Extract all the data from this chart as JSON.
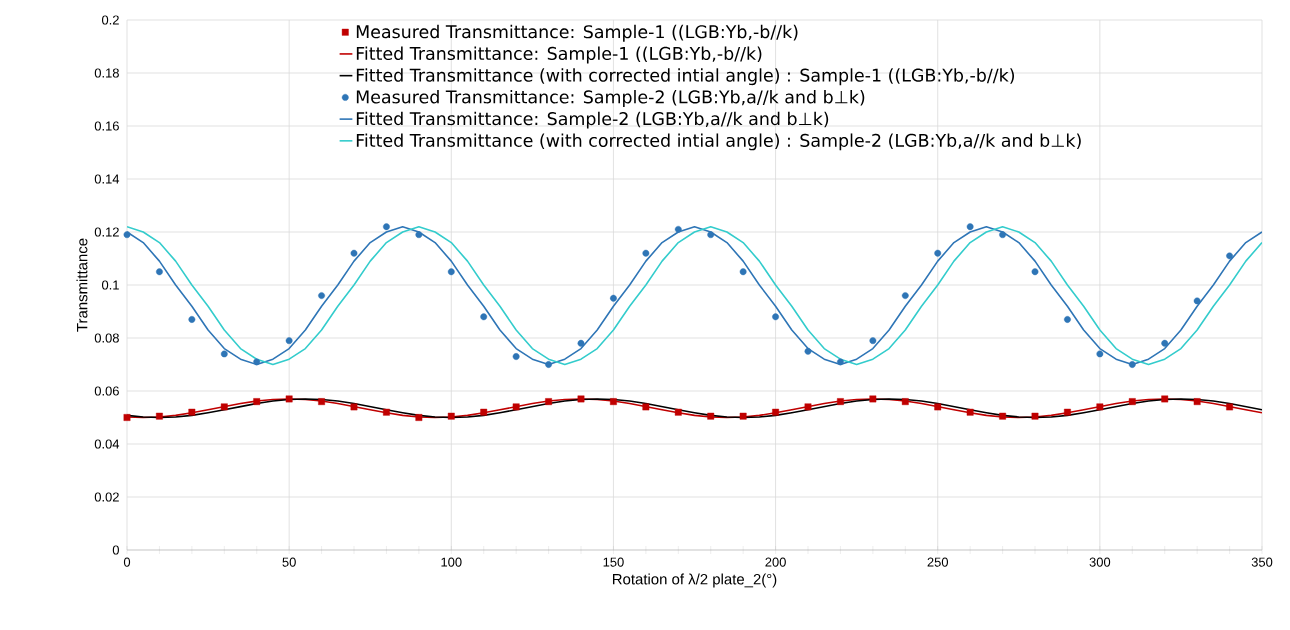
{
  "chart_data": {
    "type": "line",
    "xlabel": "Rotation of λ/2 plate_2(°)",
    "ylabel": "Transmittance",
    "xlim": [
      0,
      350
    ],
    "ylim": [
      0,
      0.2
    ],
    "xticks": [
      0,
      {
        "value": 10,
        "label": null
      },
      {
        "value": 20,
        "label": null
      },
      {
        "value": 30,
        "label": null
      },
      {
        "value": 40,
        "label": null
      },
      50,
      {
        "value": 60,
        "label": null
      },
      {
        "value": 70,
        "label": null
      },
      {
        "value": 80,
        "label": null
      },
      {
        "value": 90,
        "label": null
      },
      100,
      {
        "value": 110,
        "label": null
      },
      {
        "value": 120,
        "label": null
      },
      {
        "value": 130,
        "label": null
      },
      {
        "value": 140,
        "label": null
      },
      150,
      {
        "value": 160,
        "label": null
      },
      {
        "value": 170,
        "label": null
      },
      {
        "value": 180,
        "label": null
      },
      {
        "value": 190,
        "label": null
      },
      200,
      {
        "value": 210,
        "label": null
      },
      {
        "value": 220,
        "label": null
      },
      {
        "value": 230,
        "label": null
      },
      {
        "value": 240,
        "label": null
      },
      250,
      {
        "value": 260,
        "label": null
      },
      {
        "value": 270,
        "label": null
      },
      {
        "value": 280,
        "label": null
      },
      {
        "value": 290,
        "label": null
      },
      300,
      {
        "value": 310,
        "label": null
      },
      {
        "value": 320,
        "label": null
      },
      {
        "value": 330,
        "label": null
      },
      {
        "value": 340,
        "label": null
      },
      350
    ],
    "yticks": [
      0,
      0.02,
      0.04,
      0.06,
      0.08,
      0.1,
      0.12,
      0.14,
      0.16,
      0.18,
      0.2
    ],
    "grid": true,
    "legend": "top",
    "line_style": "solid",
    "series": [
      {
        "name": "Measured Transmittance: Sample-1 ((LGB:Yb,-b//k)",
        "type": "scatter",
        "marker": "square",
        "color": "#c00000",
        "x": [
          0,
          10,
          20,
          30,
          40,
          50,
          60,
          70,
          80,
          90,
          100,
          110,
          120,
          130,
          140,
          150,
          160,
          170,
          180,
          190,
          200,
          210,
          220,
          230,
          240,
          250,
          260,
          270,
          280,
          290,
          300,
          310,
          320,
          330,
          340
        ],
        "values": [
          0.05,
          0.0505,
          0.052,
          0.054,
          0.056,
          0.057,
          0.056,
          0.054,
          0.052,
          0.05,
          0.0505,
          0.052,
          0.054,
          0.056,
          0.057,
          0.056,
          0.054,
          0.052,
          0.0505,
          0.0505,
          0.052,
          0.054,
          0.056,
          0.057,
          0.056,
          0.054,
          0.052,
          0.0505,
          0.0505,
          0.052,
          0.054,
          0.056,
          0.057,
          0.056,
          0.054
        ]
      },
      {
        "name": "Fitted Transmittance: Sample-1 ((LGB:Yb,-b//k)",
        "marker": "none",
        "color": "#c00000",
        "x": [
          0,
          5,
          10,
          15,
          20,
          25,
          30,
          35,
          40,
          45,
          50,
          55,
          60,
          65,
          70,
          75,
          80,
          85,
          90,
          95,
          100,
          105,
          110,
          115,
          120,
          125,
          130,
          135,
          140,
          145,
          150,
          155,
          160,
          165,
          170,
          175,
          180,
          185,
          190,
          195,
          200,
          205,
          210,
          215,
          220,
          225,
          230,
          235,
          240,
          245,
          250,
          255,
          260,
          265,
          270,
          275,
          280,
          285,
          290,
          295,
          300,
          305,
          310,
          315,
          320,
          325,
          330,
          335,
          340,
          345,
          350
        ],
        "values": [
          0.0502,
          0.05,
          0.0502,
          0.0508,
          0.0518,
          0.0529,
          0.0541,
          0.0553,
          0.0562,
          0.0568,
          0.057,
          0.0568,
          0.0562,
          0.0553,
          0.0541,
          0.0529,
          0.0518,
          0.0508,
          0.0502,
          0.05,
          0.0502,
          0.0508,
          0.0518,
          0.0529,
          0.0541,
          0.0553,
          0.0562,
          0.0568,
          0.057,
          0.0568,
          0.0562,
          0.0553,
          0.0541,
          0.0529,
          0.0518,
          0.0508,
          0.0502,
          0.05,
          0.0502,
          0.0508,
          0.0518,
          0.0529,
          0.0541,
          0.0553,
          0.0562,
          0.0568,
          0.057,
          0.0568,
          0.0562,
          0.0553,
          0.0541,
          0.0529,
          0.0518,
          0.0508,
          0.0502,
          0.05,
          0.0502,
          0.0508,
          0.0518,
          0.0529,
          0.0541,
          0.0553,
          0.0562,
          0.0568,
          0.057,
          0.0568,
          0.0562,
          0.0553,
          0.0541,
          0.0529,
          0.0518
        ]
      },
      {
        "name": "Fitted Transmittance (with corrected intial angle) : Sample-1 ((LGB:Yb,-b//k)",
        "marker": "none",
        "color": "#000000",
        "x": [
          0,
          5,
          10,
          15,
          20,
          25,
          30,
          35,
          40,
          45,
          50,
          55,
          60,
          65,
          70,
          75,
          80,
          85,
          90,
          95,
          100,
          105,
          110,
          115,
          120,
          125,
          130,
          135,
          140,
          145,
          150,
          155,
          160,
          165,
          170,
          175,
          180,
          185,
          190,
          195,
          200,
          205,
          210,
          215,
          220,
          225,
          230,
          235,
          240,
          245,
          250,
          255,
          260,
          265,
          270,
          275,
          280,
          285,
          290,
          295,
          300,
          305,
          310,
          315,
          320,
          325,
          330,
          335,
          340,
          345,
          350
        ],
        "values": [
          0.0508,
          0.0502,
          0.05,
          0.0502,
          0.0508,
          0.0518,
          0.0529,
          0.0541,
          0.0553,
          0.0562,
          0.0568,
          0.057,
          0.0568,
          0.0562,
          0.0553,
          0.0541,
          0.0529,
          0.0518,
          0.0508,
          0.0502,
          0.05,
          0.0502,
          0.0508,
          0.0518,
          0.0529,
          0.0541,
          0.0553,
          0.0562,
          0.0568,
          0.057,
          0.0568,
          0.0562,
          0.0553,
          0.0541,
          0.0529,
          0.0518,
          0.0508,
          0.0502,
          0.05,
          0.0502,
          0.0508,
          0.0518,
          0.0529,
          0.0541,
          0.0553,
          0.0562,
          0.0568,
          0.057,
          0.0568,
          0.0562,
          0.0553,
          0.0541,
          0.0529,
          0.0518,
          0.0508,
          0.0502,
          0.05,
          0.0502,
          0.0508,
          0.0518,
          0.0529,
          0.0541,
          0.0553,
          0.0562,
          0.0568,
          0.057,
          0.0568,
          0.0562,
          0.0553,
          0.0541,
          0.0529
        ]
      },
      {
        "name": "Measured Transmittance: Sample-2 (LGB:Yb,a//k and b⊥k)",
        "type": "scatter",
        "marker": "circle",
        "color": "#2e75b6",
        "x": [
          0,
          10,
          20,
          30,
          40,
          50,
          60,
          70,
          80,
          90,
          100,
          110,
          120,
          130,
          140,
          150,
          160,
          170,
          180,
          190,
          200,
          210,
          220,
          230,
          240,
          250,
          260,
          270,
          280,
          290,
          300,
          310,
          320,
          330,
          340
        ],
        "values": [
          0.119,
          0.105,
          0.087,
          0.074,
          0.071,
          0.079,
          0.096,
          0.112,
          0.122,
          0.119,
          0.105,
          0.088,
          0.073,
          0.07,
          0.078,
          0.095,
          0.112,
          0.121,
          0.119,
          0.105,
          0.088,
          0.075,
          0.071,
          0.079,
          0.096,
          0.112,
          0.122,
          0.119,
          0.105,
          0.087,
          0.074,
          0.07,
          0.078,
          0.094,
          0.111
        ]
      },
      {
        "name": "Fitted Transmittance: Sample-2 (LGB:Yb,a//k and b⊥k)",
        "marker": "none",
        "color": "#2e75b6",
        "x": [
          0,
          5,
          10,
          15,
          20,
          25,
          30,
          35,
          40,
          45,
          50,
          55,
          60,
          65,
          70,
          75,
          80,
          85,
          90,
          95,
          100,
          105,
          110,
          115,
          120,
          125,
          130,
          135,
          140,
          145,
          150,
          155,
          160,
          165,
          170,
          175,
          180,
          185,
          190,
          195,
          200,
          205,
          210,
          215,
          220,
          225,
          230,
          235,
          240,
          245,
          250,
          255,
          260,
          265,
          270,
          275,
          280,
          285,
          290,
          295,
          300,
          305,
          310,
          315,
          320,
          325,
          330,
          335,
          340,
          345,
          350
        ],
        "values": [
          0.12,
          0.116,
          0.109,
          0.1,
          0.092,
          0.083,
          0.076,
          0.072,
          0.07,
          0.072,
          0.076,
          0.083,
          0.092,
          0.1,
          0.109,
          0.116,
          0.12,
          0.122,
          0.12,
          0.116,
          0.109,
          0.1,
          0.092,
          0.083,
          0.076,
          0.072,
          0.07,
          0.072,
          0.076,
          0.083,
          0.092,
          0.1,
          0.109,
          0.116,
          0.12,
          0.122,
          0.12,
          0.116,
          0.109,
          0.1,
          0.092,
          0.083,
          0.076,
          0.072,
          0.07,
          0.072,
          0.076,
          0.083,
          0.092,
          0.1,
          0.109,
          0.116,
          0.12,
          0.122,
          0.12,
          0.116,
          0.109,
          0.1,
          0.092,
          0.083,
          0.076,
          0.072,
          0.07,
          0.072,
          0.076,
          0.083,
          0.092,
          0.1,
          0.109,
          0.116,
          0.12
        ]
      },
      {
        "name": "Fitted Transmittance (with corrected intial angle) : Sample-2 (LGB:Yb,a//k and b⊥k)",
        "marker": "none",
        "color": "#33cccc",
        "x": [
          0,
          5,
          10,
          15,
          20,
          25,
          30,
          35,
          40,
          45,
          50,
          55,
          60,
          65,
          70,
          75,
          80,
          85,
          90,
          95,
          100,
          105,
          110,
          115,
          120,
          125,
          130,
          135,
          140,
          145,
          150,
          155,
          160,
          165,
          170,
          175,
          180,
          185,
          190,
          195,
          200,
          205,
          210,
          215,
          220,
          225,
          230,
          235,
          240,
          245,
          250,
          255,
          260,
          265,
          270,
          275,
          280,
          285,
          290,
          295,
          300,
          305,
          310,
          315,
          320,
          325,
          330,
          335,
          340,
          345,
          350
        ],
        "values": [
          0.122,
          0.12,
          0.116,
          0.109,
          0.1,
          0.092,
          0.083,
          0.076,
          0.072,
          0.07,
          0.072,
          0.076,
          0.083,
          0.092,
          0.1,
          0.109,
          0.116,
          0.12,
          0.122,
          0.12,
          0.116,
          0.109,
          0.1,
          0.092,
          0.083,
          0.076,
          0.072,
          0.07,
          0.072,
          0.076,
          0.083,
          0.092,
          0.1,
          0.109,
          0.116,
          0.12,
          0.122,
          0.12,
          0.116,
          0.109,
          0.1,
          0.092,
          0.083,
          0.076,
          0.072,
          0.07,
          0.072,
          0.076,
          0.083,
          0.092,
          0.1,
          0.109,
          0.116,
          0.12,
          0.122,
          0.12,
          0.116,
          0.109,
          0.1,
          0.092,
          0.083,
          0.076,
          0.072,
          0.07,
          0.072,
          0.076,
          0.083,
          0.092,
          0.1,
          0.109,
          0.116
        ]
      }
    ]
  }
}
